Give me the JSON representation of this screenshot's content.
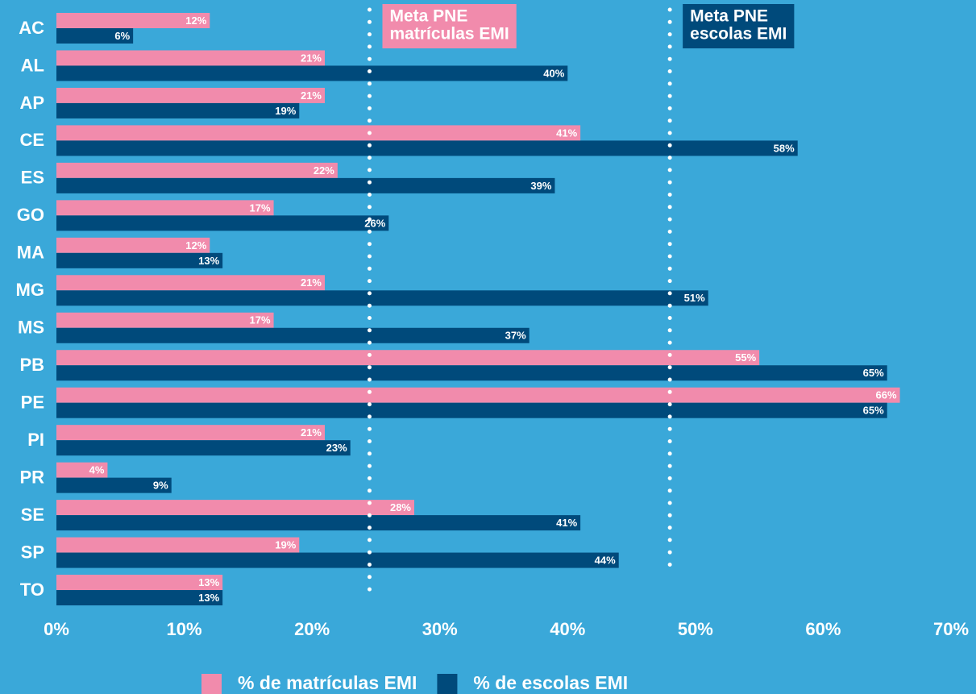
{
  "chart_data": {
    "type": "bar",
    "orientation": "horizontal",
    "categories": [
      "AC",
      "AL",
      "AP",
      "CE",
      "ES",
      "GO",
      "MA",
      "MG",
      "MS",
      "PB",
      "PE",
      "PI",
      "PR",
      "SE",
      "SP",
      "TO"
    ],
    "series": [
      {
        "name": "% de matrículas EMI",
        "color": "#f18bac",
        "values": [
          12,
          21,
          21,
          41,
          22,
          17,
          12,
          21,
          17,
          55,
          66,
          21,
          4,
          28,
          19,
          13
        ],
        "value_labels": [
          "12%",
          "21%",
          "21%",
          "41%",
          "22%",
          "17%",
          "12%",
          "21%",
          "17%",
          "55%",
          "66%",
          "21%",
          "4%",
          "28%",
          "19%",
          "13%"
        ]
      },
      {
        "name": "% de escolas EMI",
        "color": "#004a7b",
        "values": [
          6,
          40,
          19,
          58,
          39,
          26,
          13,
          51,
          37,
          65,
          65,
          23,
          9,
          41,
          44,
          13
        ],
        "value_labels": [
          "6%",
          "40%",
          "19%",
          "58%",
          "39%",
          "26%",
          "13%",
          "51%",
          "37%",
          "65%",
          "65%",
          "23%",
          "9%",
          "41%",
          "44%",
          "13%"
        ]
      }
    ],
    "xlim": [
      0,
      70
    ],
    "xticks": [
      {
        "value": 0,
        "label": "0%"
      },
      {
        "value": 10,
        "label": "10%"
      },
      {
        "value": 20,
        "label": "20%"
      },
      {
        "value": 30,
        "label": "30%"
      },
      {
        "value": 40,
        "label": "40%"
      },
      {
        "value": 50,
        "label": "50%"
      },
      {
        "value": 60,
        "label": "60%"
      },
      {
        "value": 70,
        "label": "70%"
      }
    ],
    "grid": false,
    "annotations": [
      {
        "lines": [
          "Meta PNE",
          "matrículas EMI"
        ],
        "x": 24.5,
        "color": "#f18bac"
      },
      {
        "lines": [
          "Meta PNE",
          "escolas EMI"
        ],
        "x": 48,
        "color": "#004a7b"
      }
    ],
    "legend": "bottom"
  }
}
